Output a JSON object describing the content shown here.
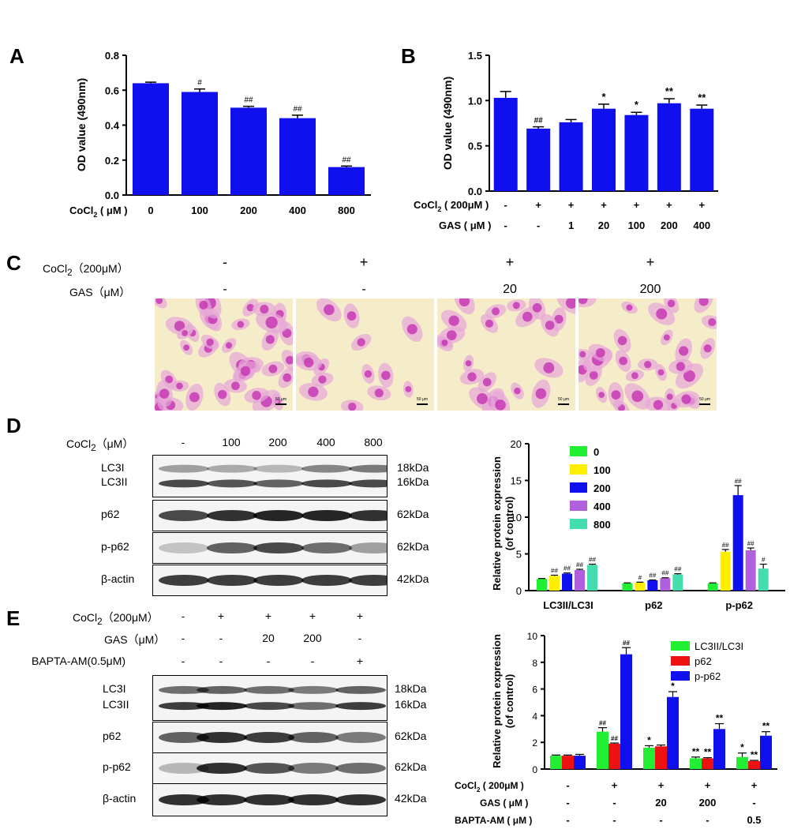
{
  "panels": {
    "A": {
      "letter": "A",
      "chart_data": {
        "type": "bar",
        "ylabel": "OD value (490nm)",
        "treatment_label": "CoCl",
        "treatment_sub": "2",
        "treatment_unit": " ( μM )",
        "categories": [
          "0",
          "100",
          "200",
          "400",
          "800"
        ],
        "values": [
          0.64,
          0.59,
          0.5,
          0.44,
          0.16
        ],
        "errors": [
          0.006,
          0.017,
          0.008,
          0.017,
          0.006
        ],
        "significance": [
          "",
          "#",
          "##",
          "##",
          "##"
        ],
        "ylim": [
          0.0,
          0.8
        ],
        "yticks": [
          "0.0",
          "0.2",
          "0.4",
          "0.6",
          "0.8"
        ],
        "color": "#1010ee"
      }
    },
    "B": {
      "letter": "B",
      "chart_data": {
        "type": "bar",
        "ylabel": "OD value (490nm)",
        "row1_label": "CoCl",
        "row1_sub": "2",
        "row1_unit": " ( 200μM )",
        "row1": [
          "-",
          "+",
          "+",
          "+",
          "+",
          "+",
          "+"
        ],
        "row2_label": "GAS ( μM )",
        "row2": [
          "-",
          "-",
          "1",
          "20",
          "100",
          "200",
          "400"
        ],
        "values": [
          1.03,
          0.69,
          0.76,
          0.91,
          0.84,
          0.97,
          0.91
        ],
        "errors": [
          0.07,
          0.02,
          0.03,
          0.05,
          0.03,
          0.05,
          0.04
        ],
        "significance": [
          "",
          "##",
          "",
          "*",
          "*",
          "**",
          "**"
        ],
        "ylim": [
          0.0,
          1.5
        ],
        "yticks": [
          "0.0",
          "0.5",
          "1.0",
          "1.5"
        ],
        "color": "#1010ee"
      }
    },
    "C": {
      "letter": "C",
      "row1_label": "CoCl",
      "row1_sub": "2",
      "row1_unit": "（200μM）",
      "row1": [
        "-",
        "+",
        "+",
        "+"
      ],
      "row2_label": "GAS（μM）",
      "row2": [
        "-",
        "-",
        "20",
        "200"
      ],
      "scale_text": "50 μm"
    },
    "D": {
      "letter": "D",
      "header_label": "CoCl",
      "header_sub": "2",
      "header_unit": "（μM）",
      "header": [
        "-",
        "100",
        "200",
        "400",
        "800"
      ],
      "blots": [
        {
          "labels": [
            "LC3I",
            "LC3II"
          ],
          "kda": [
            "18kDa",
            "16kDa"
          ]
        },
        {
          "labels": [
            "p62"
          ],
          "kda": [
            "62kDa"
          ]
        },
        {
          "labels": [
            "p-p62"
          ],
          "kda": [
            "62kDa"
          ]
        },
        {
          "labels": [
            "β-actin"
          ],
          "kda": [
            "42kDa"
          ]
        }
      ],
      "chart_data": {
        "type": "bar",
        "ylabel": "Relative protein expression",
        "ylabel2": "(of control)",
        "groups": [
          "LC3II/LC3I",
          "p62",
          "p-p62"
        ],
        "series": [
          {
            "name": "0",
            "color": "#22ee33",
            "values": [
              1.6,
              1.0,
              1.0
            ],
            "errors": [
              0.05,
              0.05,
              0.05
            ],
            "sig": [
              "",
              "",
              ""
            ]
          },
          {
            "name": "100",
            "color": "#ffee00",
            "values": [
              2.0,
              1.1,
              5.3
            ],
            "errors": [
              0.1,
              0.05,
              0.3
            ],
            "sig": [
              "##",
              "#",
              "##"
            ]
          },
          {
            "name": "200",
            "color": "#1010ee",
            "values": [
              2.3,
              1.4,
              13.0
            ],
            "errors": [
              0.1,
              0.05,
              1.3
            ],
            "sig": [
              "##",
              "##",
              "##"
            ]
          },
          {
            "name": "400",
            "color": "#b060dd",
            "values": [
              2.8,
              1.7,
              5.5
            ],
            "errors": [
              0.1,
              0.05,
              0.3
            ],
            "sig": [
              "##",
              "##",
              "##"
            ]
          },
          {
            "name": "800",
            "color": "#44ddb0",
            "values": [
              3.5,
              2.2,
              3.0
            ],
            "errors": [
              0.1,
              0.1,
              0.6
            ],
            "sig": [
              "##",
              "##",
              "#"
            ]
          }
        ],
        "ylim": [
          0,
          20
        ],
        "yticks": [
          "0",
          "5",
          "10",
          "15",
          "20"
        ]
      }
    },
    "E": {
      "letter": "E",
      "row1_label": "CoCl",
      "row1_sub": "2",
      "row1_unit": "（200μM）",
      "row1": [
        "-",
        "+",
        "+",
        "+",
        "+"
      ],
      "row2_label": "GAS（μM）",
      "row2": [
        "-",
        "-",
        "20",
        "200",
        "-"
      ],
      "row3_label": "BAPTA-AM(0.5μM)",
      "row3": [
        "-",
        "-",
        "-",
        "-",
        "+"
      ],
      "blots": [
        {
          "labels": [
            "LC3I",
            "LC3II"
          ],
          "kda": [
            "18kDa",
            "16kDa"
          ]
        },
        {
          "labels": [
            "p62"
          ],
          "kda": [
            "62kDa"
          ]
        },
        {
          "labels": [
            "p-p62"
          ],
          "kda": [
            "62kDa"
          ]
        },
        {
          "labels": [
            "β-actin"
          ],
          "kda": [
            "42kDa"
          ]
        }
      ],
      "chart_data": {
        "type": "bar",
        "ylabel": "Relative protein expression",
        "ylabel2": "(of control)",
        "ylim": [
          0,
          10
        ],
        "yticks": [
          "0",
          "2",
          "4",
          "6",
          "8",
          "10"
        ],
        "series": [
          {
            "name": "LC3II/LC3I",
            "color": "#22ee33",
            "values": [
              1.0,
              2.8,
              1.6,
              0.8,
              0.9
            ],
            "errors": [
              0.05,
              0.3,
              0.15,
              0.1,
              0.3
            ],
            "sig": [
              "",
              "##",
              "*",
              "**",
              "*"
            ]
          },
          {
            "name": "p62",
            "color": "#ee1111",
            "values": [
              1.0,
              1.9,
              1.7,
              0.8,
              0.6
            ],
            "errors": [
              0.05,
              0.05,
              0.1,
              0.05,
              0.05
            ],
            "sig": [
              "",
              "##",
              "",
              "**",
              "**"
            ]
          },
          {
            "name": "p-p62",
            "color": "#1010ee",
            "values": [
              1.0,
              8.6,
              5.4,
              3.0,
              2.5
            ],
            "errors": [
              0.1,
              0.5,
              0.4,
              0.4,
              0.3
            ],
            "sig": [
              "",
              "##",
              "*",
              "**",
              "**"
            ]
          }
        ],
        "row1_label": "CoCl",
        "row1_sub": "2",
        "row1_unit": " ( 200μM )",
        "row1": [
          "-",
          "+",
          "+",
          "+",
          "+"
        ],
        "row2_label": "GAS ( μM )",
        "row2": [
          "-",
          "-",
          "20",
          "200",
          "-"
        ],
        "row3_label": "BAPTA-AM ( μM )",
        "row3": [
          "-",
          "-",
          "-",
          "-",
          "0.5"
        ]
      }
    }
  }
}
